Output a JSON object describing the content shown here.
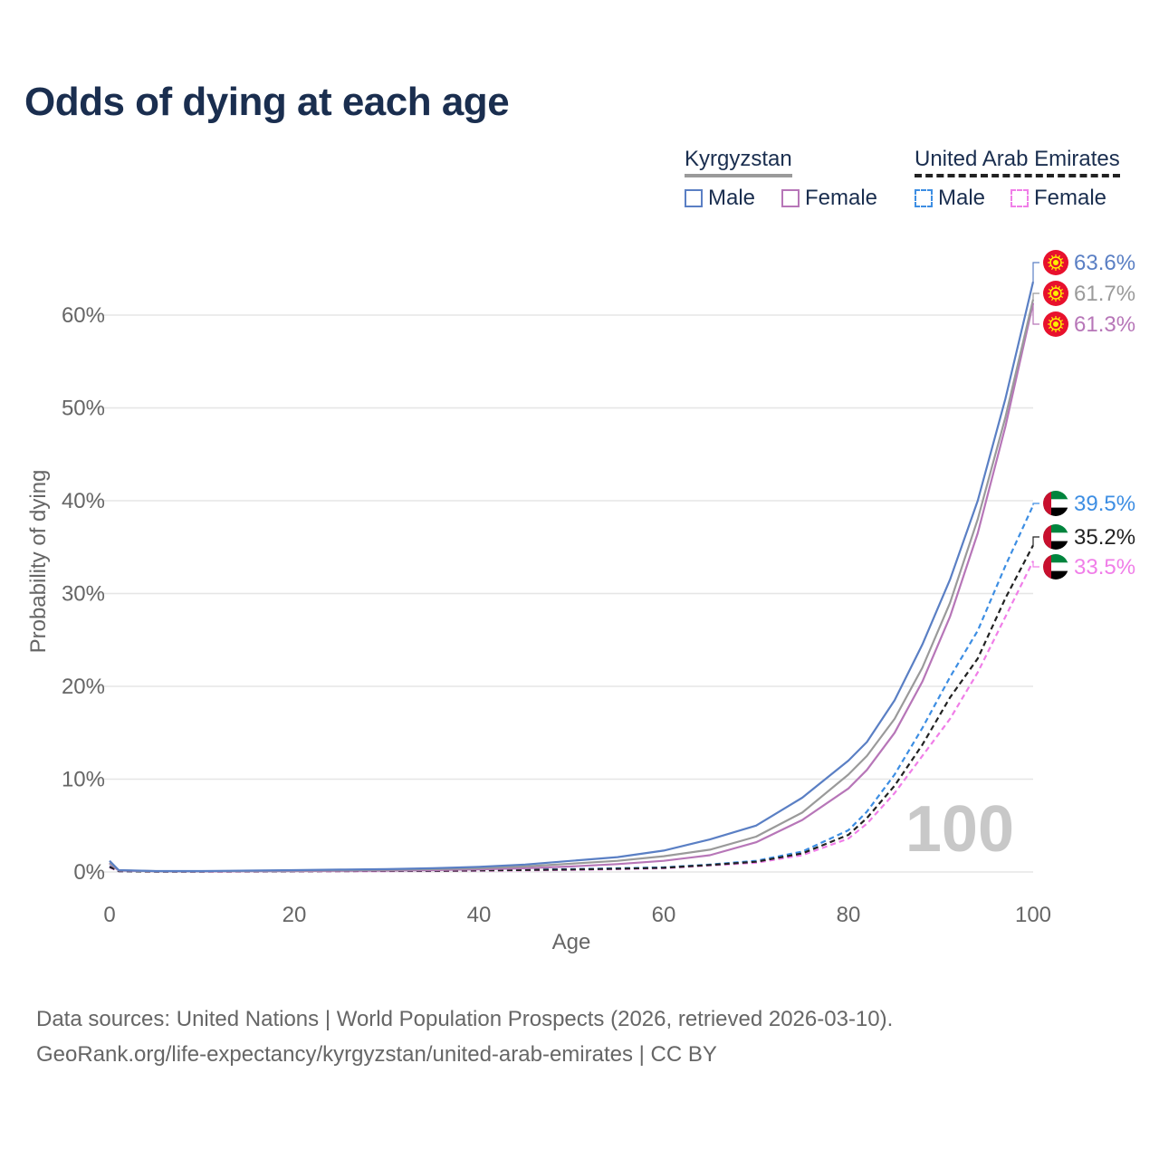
{
  "title": "Odds of dying at each age",
  "legend": {
    "groups": [
      {
        "country": "Kyrgyzstan",
        "male": "Male",
        "female": "Female"
      },
      {
        "country": "United Arab Emirates",
        "male": "Male",
        "female": "Female"
      }
    ]
  },
  "colors": {
    "kg_male": "#5a7fc4",
    "kg_total": "#9a9a9a",
    "kg_female": "#b776b8",
    "ae_male": "#3d8ee3",
    "ae_total": "#222222",
    "ae_female": "#f07ee8",
    "title": "#1a2e4f",
    "grid": "#e6e6e6",
    "axis_text": "#666666",
    "watermark": "#c8c8c8"
  },
  "flags": [
    "kyrgyzstan-flag-icon",
    "uae-flag-icon"
  ],
  "watermark": "100",
  "chart_data": {
    "type": "line",
    "title": "Odds of dying at each age",
    "xlabel": "Age",
    "ylabel": "Probability of dying",
    "xlim": [
      0,
      100
    ],
    "ylim": [
      0,
      65
    ],
    "x_ticks": [
      0,
      20,
      40,
      60,
      80,
      100
    ],
    "y_ticks": [
      0,
      10,
      20,
      30,
      40,
      50,
      60
    ],
    "y_tick_labels": [
      "0%",
      "10%",
      "20%",
      "30%",
      "40%",
      "50%",
      "60%"
    ],
    "x": [
      0,
      1,
      5,
      10,
      15,
      20,
      25,
      30,
      35,
      40,
      45,
      50,
      55,
      60,
      65,
      70,
      75,
      80,
      82,
      85,
      88,
      91,
      94,
      97,
      100
    ],
    "series": [
      {
        "key": "kg_male",
        "name": "Kyrgyzstan Male",
        "country": "Kyrgyzstan",
        "style": "solid",
        "values": [
          1.2,
          0.2,
          0.1,
          0.1,
          0.15,
          0.2,
          0.25,
          0.3,
          0.4,
          0.55,
          0.8,
          1.2,
          1.6,
          2.3,
          3.5,
          5.0,
          8.0,
          12.0,
          14.0,
          18.5,
          24.5,
          31.5,
          40.0,
          51.0,
          63.6
        ],
        "end_label": "63.6%"
      },
      {
        "key": "kg_total",
        "name": "Kyrgyzstan Total",
        "country": "Kyrgyzstan",
        "style": "solid",
        "values": [
          1.0,
          0.18,
          0.09,
          0.08,
          0.12,
          0.15,
          0.18,
          0.22,
          0.3,
          0.4,
          0.6,
          0.9,
          1.2,
          1.7,
          2.4,
          3.8,
          6.4,
          10.5,
          12.5,
          16.5,
          22.0,
          29.0,
          38.0,
          49.0,
          61.7
        ],
        "end_label": "61.7%"
      },
      {
        "key": "kg_female",
        "name": "Kyrgyzstan Female",
        "country": "Kyrgyzstan",
        "style": "solid",
        "values": [
          0.9,
          0.15,
          0.08,
          0.06,
          0.08,
          0.1,
          0.12,
          0.15,
          0.2,
          0.28,
          0.4,
          0.6,
          0.85,
          1.2,
          1.8,
          3.2,
          5.6,
          9.0,
          11.0,
          15.0,
          20.5,
          27.5,
          36.5,
          48.0,
          61.3
        ],
        "end_label": "61.3%"
      },
      {
        "key": "ae_male",
        "name": "United Arab Emirates Male",
        "country": "United Arab Emirates",
        "style": "dashed",
        "values": [
          0.6,
          0.1,
          0.05,
          0.05,
          0.07,
          0.1,
          0.12,
          0.13,
          0.15,
          0.2,
          0.25,
          0.3,
          0.4,
          0.5,
          0.8,
          1.2,
          2.2,
          4.5,
          6.5,
          10.5,
          15.5,
          21.0,
          26.0,
          33.0,
          39.5
        ],
        "end_label": "39.5%"
      },
      {
        "key": "ae_total",
        "name": "United Arab Emirates Total",
        "country": "United Arab Emirates",
        "style": "dashed",
        "values": [
          0.55,
          0.09,
          0.04,
          0.04,
          0.06,
          0.08,
          0.1,
          0.11,
          0.13,
          0.17,
          0.21,
          0.26,
          0.35,
          0.45,
          0.75,
          1.1,
          2.0,
          4.0,
          5.8,
          9.3,
          13.7,
          18.8,
          23.0,
          29.5,
          35.2
        ],
        "end_label": "35.2%"
      },
      {
        "key": "ae_female",
        "name": "United Arab Emirates Female",
        "country": "United Arab Emirates",
        "style": "dashed",
        "values": [
          0.5,
          0.08,
          0.04,
          0.03,
          0.05,
          0.06,
          0.08,
          0.09,
          0.1,
          0.13,
          0.17,
          0.22,
          0.3,
          0.4,
          0.7,
          1.0,
          1.8,
          3.6,
          5.2,
          8.5,
          12.5,
          16.5,
          21.5,
          27.5,
          33.5
        ],
        "end_label": "33.5%"
      }
    ]
  },
  "footer": {
    "line1": "Data sources: United Nations | World Population Prospects (2026, retrieved 2026-03-10).",
    "line2": "GeoRank.org/life-expectancy/kyrgyzstan/united-arab-emirates | CC BY"
  }
}
